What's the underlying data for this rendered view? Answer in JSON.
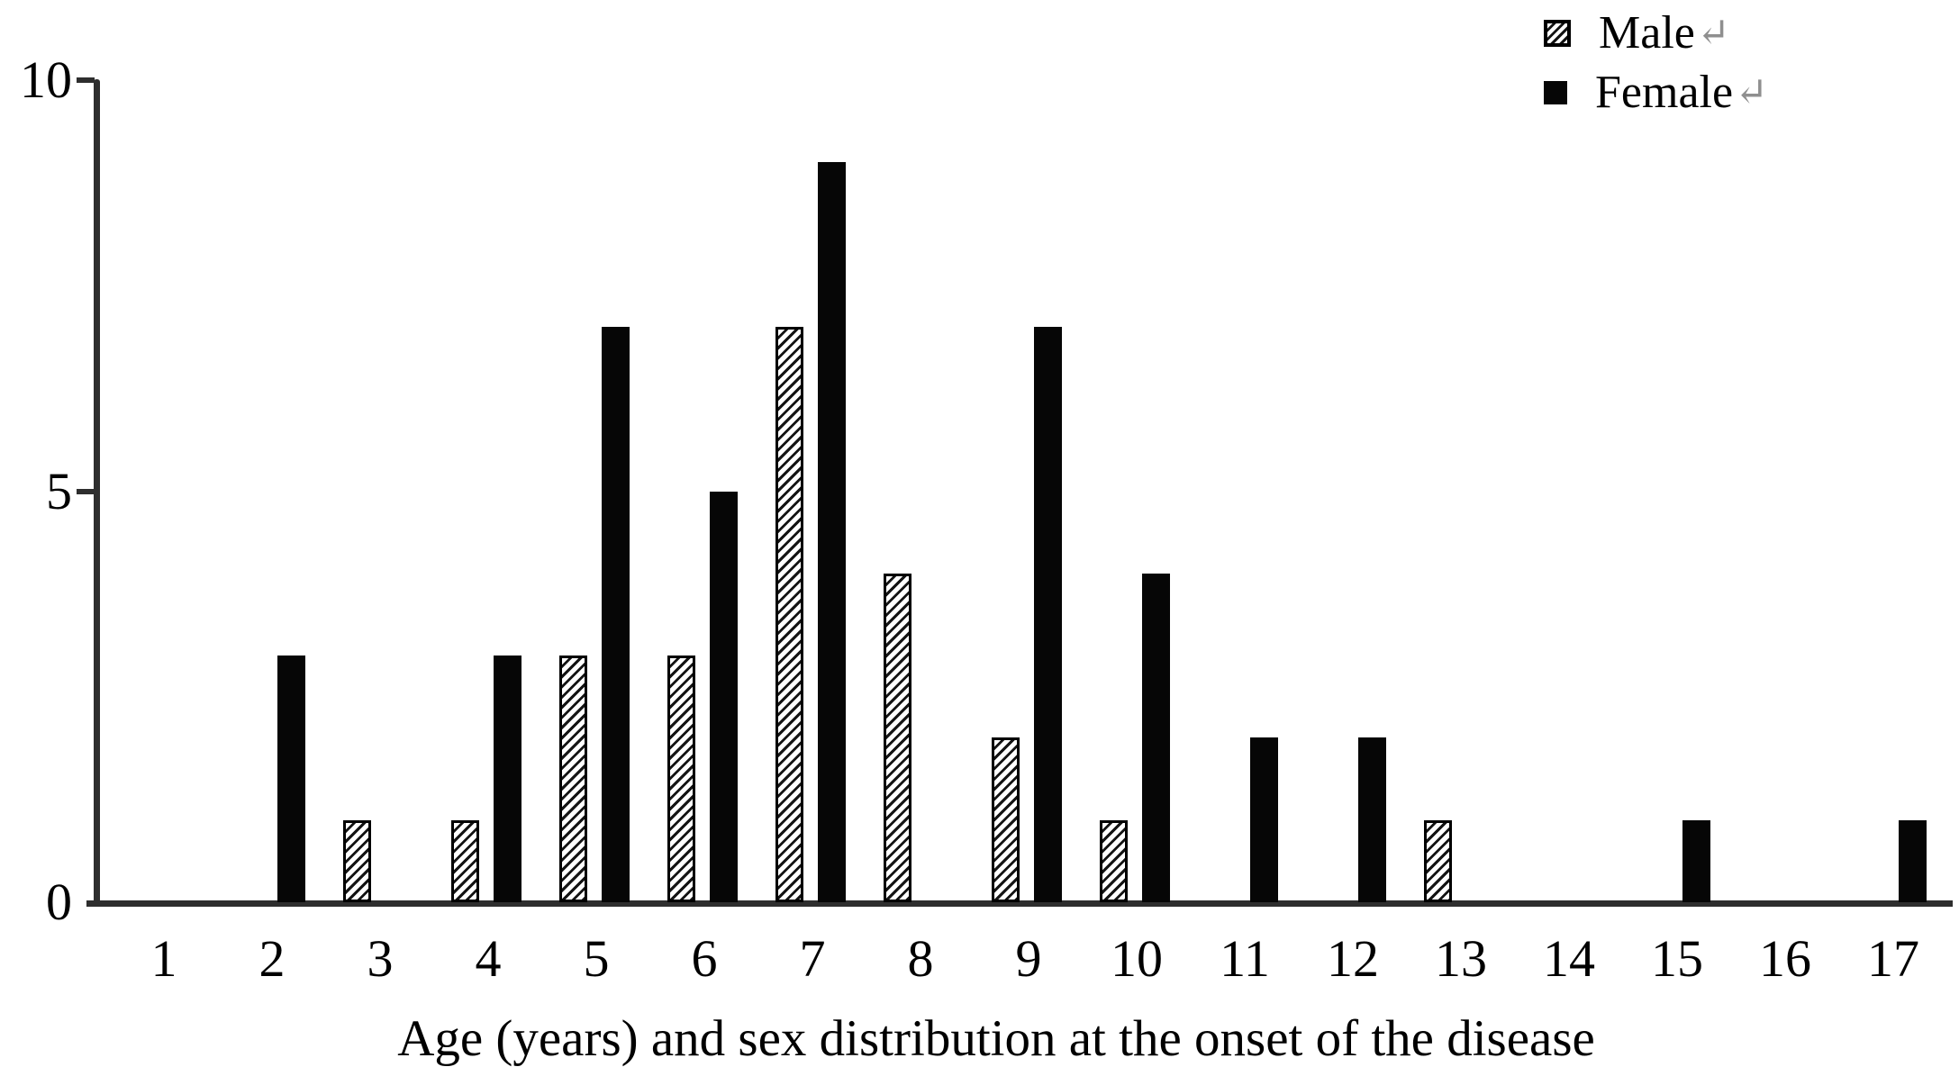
{
  "figure": {
    "background": "#ffffff"
  },
  "colors": {
    "bar_solid": "#060606",
    "hatch_line": "#141414",
    "axis": "#2e2e2e",
    "text": "#000000",
    "return_mark": "#8f8f8f"
  },
  "legend": {
    "items": [
      {
        "label": "Male",
        "return_mark": "↵",
        "swatch": "hatched"
      },
      {
        "label": "Female",
        "return_mark": "↵",
        "swatch": "solid"
      }
    ]
  },
  "chart_data": {
    "type": "bar",
    "title": "",
    "xlabel": "Age (years) and sex distribution at the onset of the disease",
    "ylabel": "",
    "categories": [
      "1",
      "2",
      "3",
      "4",
      "5",
      "6",
      "7",
      "8",
      "9",
      "10",
      "11",
      "12",
      "13",
      "14",
      "15",
      "16",
      "17"
    ],
    "series": [
      {
        "name": "Male",
        "style": "hatched",
        "values": [
          0,
          0,
          1,
          1,
          3,
          3,
          7,
          4,
          2,
          1,
          0,
          0,
          1,
          0,
          0,
          0,
          0
        ]
      },
      {
        "name": "Female",
        "style": "solid",
        "values": [
          0,
          3,
          0,
          3,
          7,
          5,
          9,
          0,
          7,
          4,
          2,
          2,
          0,
          0,
          1,
          0,
          1
        ]
      }
    ],
    "y_ticks": [
      0,
      5,
      10
    ],
    "ylim": [
      0,
      10
    ],
    "grid": false,
    "legend_position": "top-right"
  }
}
